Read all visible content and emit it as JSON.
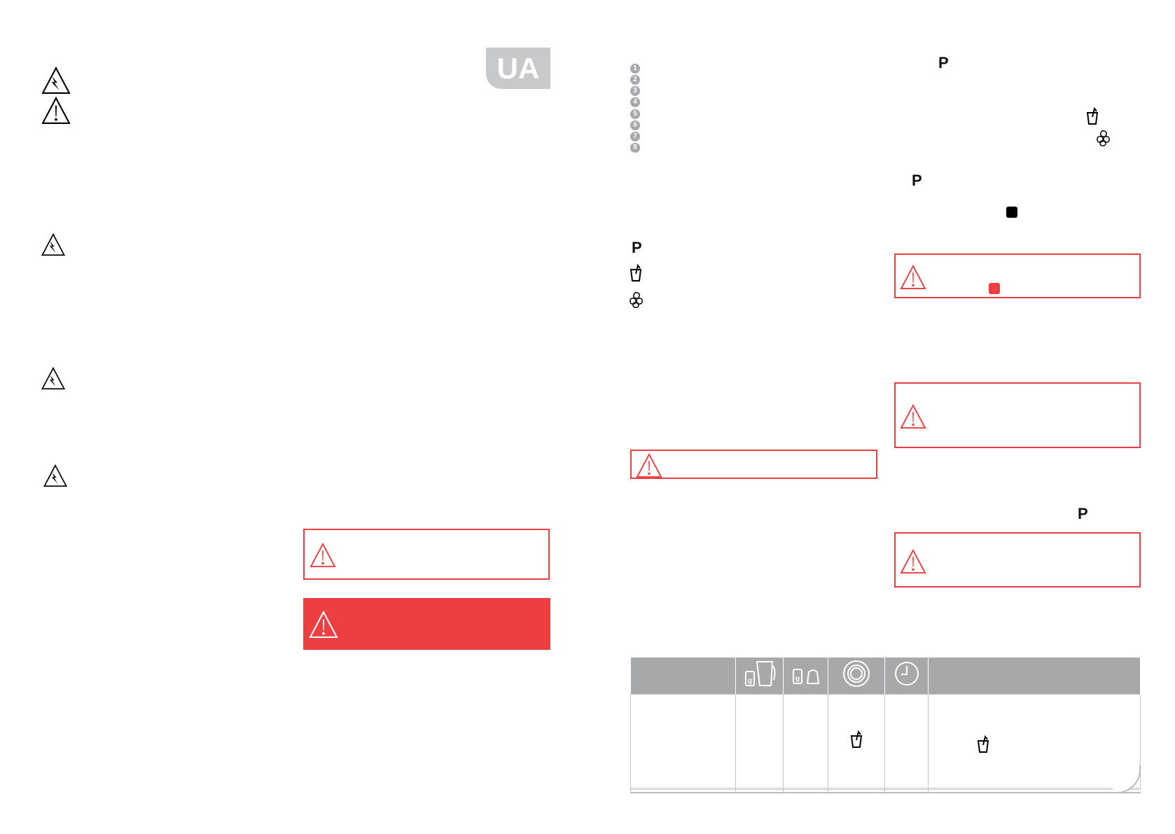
{
  "badge": "UA",
  "numbers": [
    "1",
    "2",
    "3",
    "4",
    "5",
    "6",
    "7",
    "8"
  ],
  "p_label": "P",
  "colors": {
    "warning_red": "#ef3e42",
    "badge_gray": "#c8c9cb",
    "table_header": "#a7a8aa"
  },
  "table": {
    "header_icons": [
      "scale-jug-icon",
      "scale-cup-icon",
      "speed-dial-icon",
      "timer-icon"
    ],
    "row_icons": [
      "smoothie-icon"
    ]
  }
}
